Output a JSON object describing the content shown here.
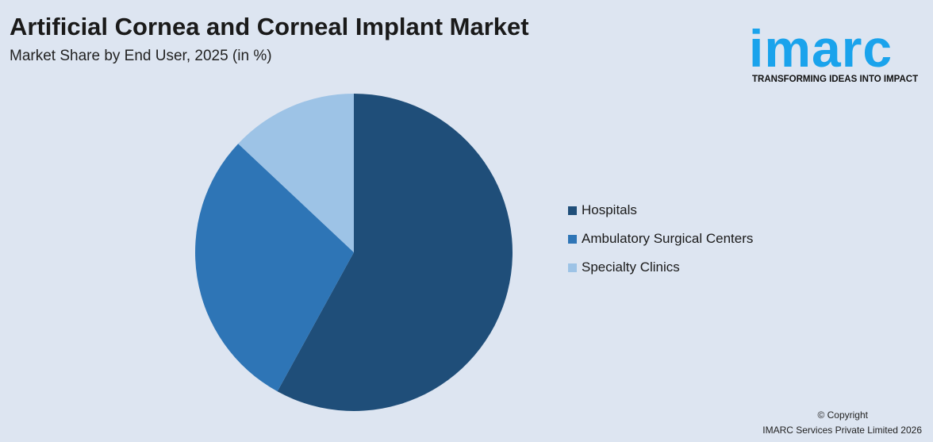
{
  "chart_data": {
    "type": "pie",
    "title": "Artificial Cornea and Corneal Implant Market",
    "subtitle": "Market Share by End User, 2025 (in %)",
    "categories": [
      "Hospitals",
      "Ambulatory Surgical Centers",
      "Specialty Clinics"
    ],
    "values": [
      58,
      29,
      13
    ],
    "colors": [
      "#1f4e79",
      "#2e75b6",
      "#9dc3e6"
    ],
    "legend_position": "right",
    "start_angle": "top, clockwise"
  },
  "logo": {
    "word": "imarc",
    "tagline": "TRANSFORMING IDEAS INTO IMPACT"
  },
  "footer": {
    "copyright": "© Copyright",
    "company": "IMARC Services Private Limited 2026"
  }
}
